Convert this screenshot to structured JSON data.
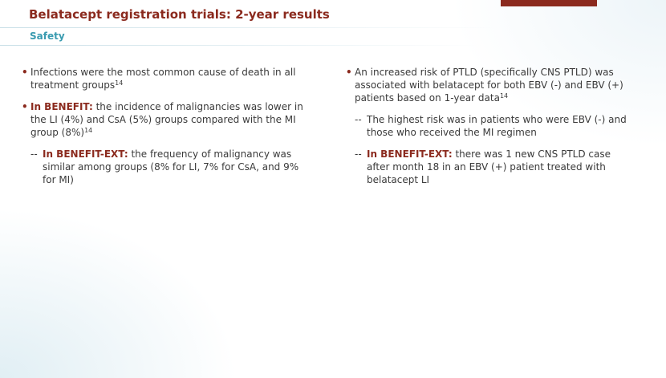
{
  "header": {
    "title": "Belatacept registration trials: 2-year results",
    "subtitle": "Safety"
  },
  "left_column": {
    "bullet_1": {
      "text": "Infections were the most common cause of death in all treatment groups",
      "ref": "14"
    },
    "bullet_2": {
      "lead": "In BENEFIT:",
      "text": " the incidence of malignancies was lower in the LI (4%) and CsA (5%) groups compared with the MI group (8%)",
      "ref": "14"
    },
    "sub_1": {
      "lead": "In BENEFIT-EXT:",
      "text": " the frequency of malignancy was similar among groups (8% for LI, 7% for CsA, and 9% for MI)"
    }
  },
  "right_column": {
    "bullet_1": {
      "text": "An increased risk of PTLD (specifically CNS PTLD) was associated with belatacept for both EBV (-) and EBV (+) patients based on 1-year data",
      "ref": "14"
    },
    "sub_1": {
      "text": "The highest risk was in patients who were EBV (-) and those who received the MI regimen"
    },
    "sub_2": {
      "lead": "In BENEFIT-EXT:",
      "text": " there was 1 new CNS PTLD case after month 18 in an EBV (+) patient treated with belatacept LI"
    }
  },
  "markers": {
    "bullet": "•",
    "dash": "--"
  },
  "colors": {
    "accent": "#8b2a1e",
    "subtitle": "#3a9bb0",
    "body_text": "#3a3a3a"
  }
}
